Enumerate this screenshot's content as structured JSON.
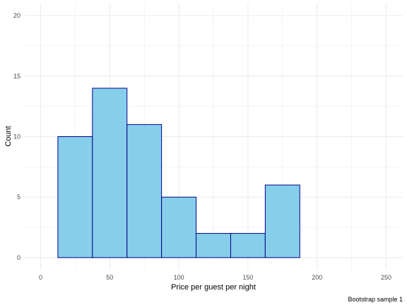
{
  "chart_data": {
    "type": "bar",
    "title": "",
    "xlabel": "Price per guest per night",
    "ylabel": "Count",
    "caption": "Bootstrap sample 1",
    "xlim": [
      -12,
      262
    ],
    "ylim": [
      -1,
      21
    ],
    "x_ticks": [
      0,
      50,
      100,
      150,
      200,
      250
    ],
    "x_tick_labels": [
      "0",
      "50",
      "100",
      "150",
      "200",
      "250"
    ],
    "y_ticks": [
      0,
      5,
      10,
      15,
      20
    ],
    "y_tick_labels": [
      "0",
      "5",
      "10",
      "15",
      "20"
    ],
    "grid": true,
    "bin_width": 25,
    "bins": [
      {
        "x0": 12.5,
        "x1": 37.5,
        "count": 10
      },
      {
        "x0": 37.5,
        "x1": 62.5,
        "count": 14
      },
      {
        "x0": 62.5,
        "x1": 87.5,
        "count": 11
      },
      {
        "x0": 87.5,
        "x1": 112.5,
        "count": 5
      },
      {
        "x0": 112.5,
        "x1": 137.5,
        "count": 2
      },
      {
        "x0": 137.5,
        "x1": 162.5,
        "count": 2
      },
      {
        "x0": 162.5,
        "x1": 187.5,
        "count": 6
      },
      {
        "x0": 187.5,
        "x1": 212.5,
        "count": 0
      },
      {
        "x0": 212.5,
        "x1": 237.5,
        "count": 0
      }
    ],
    "colors": {
      "fill": "#87ceeb",
      "outline": "#00008b",
      "grid": "#ebebeb"
    }
  }
}
